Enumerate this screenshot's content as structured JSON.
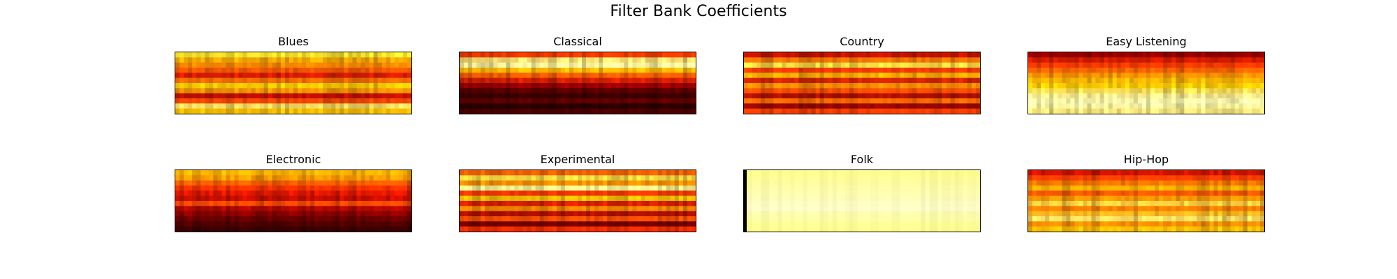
{
  "figure": {
    "title": "Filter Bank Coefficients",
    "colormap": "hot"
  },
  "chart_data": [
    {
      "type": "heatmap",
      "title": "Blues",
      "rows": [
        "#ffeb30",
        "#ffb000",
        "#ff8c00",
        "#ff5a00",
        "#e01e00",
        "#ff7000",
        "#ffd000",
        "#ff9a00",
        "#c81000",
        "#ff4a00",
        "#ffe060",
        "#ffc400"
      ],
      "profile": "warm-bright-band",
      "dominant_colors": [
        "#ff2800",
        "#ffd200",
        "#fffca0",
        "#8b0000"
      ]
    },
    {
      "type": "heatmap",
      "title": "Classical",
      "rows": [
        "#ff3c00",
        "#ffe070",
        "#fff8a0",
        "#ffb800",
        "#ff6000",
        "#d42000",
        "#9a0000",
        "#5a0000",
        "#3c0000",
        "#600000",
        "#2a0000",
        "#4a0000"
      ],
      "profile": "bright-top-dark-bottom",
      "dominant_colors": [
        "#3c0000",
        "#ffd000",
        "#fffaa8",
        "#c81400"
      ]
    },
    {
      "type": "heatmap",
      "title": "Country",
      "rows": [
        "#c81400",
        "#ff7800",
        "#ffe040",
        "#ff3c00",
        "#ffb000",
        "#d82400",
        "#ff9000",
        "#ff5000",
        "#b41000",
        "#ff6a00",
        "#9c0800",
        "#ff4000"
      ],
      "profile": "striped",
      "dominant_colors": [
        "#c81400",
        "#ffa000",
        "#ffe868",
        "#6e0000"
      ]
    },
    {
      "type": "heatmap",
      "title": "Easy Listening",
      "rows": [
        "#9a0000",
        "#d41c00",
        "#ff3c00",
        "#ff6400",
        "#ff9600",
        "#ffb800",
        "#ffd000",
        "#ffe050",
        "#fff090",
        "#ffffb0",
        "#fff7a0",
        "#ffee80"
      ],
      "profile": "dark-top-bright-bottom",
      "dominant_colors": [
        "#9a0000",
        "#ff5000",
        "#ffe060",
        "#ffffc0"
      ]
    },
    {
      "type": "heatmap",
      "title": "Electronic",
      "rows": [
        "#ffb400",
        "#ff9c00",
        "#ff6000",
        "#ff3200",
        "#e01800",
        "#c80e00",
        "#ff4a00",
        "#b00800",
        "#8c0000",
        "#6a0000",
        "#500000",
        "#3a0000"
      ],
      "profile": "mid-top-dark-bottom",
      "dominant_colors": [
        "#ff7000",
        "#e01c00",
        "#700000",
        "#ffd040"
      ]
    },
    {
      "type": "heatmap",
      "title": "Experimental",
      "rows": [
        "#ff6400",
        "#ffe040",
        "#ff9400",
        "#fff890",
        "#ff3a00",
        "#ffc400",
        "#e02000",
        "#ff8800",
        "#b81000",
        "#ff5000",
        "#7a0000",
        "#ff3000"
      ],
      "profile": "striped",
      "dominant_colors": [
        "#ff5000",
        "#ffe040",
        "#fffaa0",
        "#8c0000"
      ]
    },
    {
      "type": "heatmap",
      "title": "Folk",
      "rows": [
        "#ffff90",
        "#ffff98",
        "#fffca0",
        "#ffffa8",
        "#ffffb0",
        "#fffcb8",
        "#ffffc0",
        "#ffffc8",
        "#fffcb0",
        "#ffffa8",
        "#ffff98",
        "#ffff90"
      ],
      "profile": "uniform-bright",
      "dominant_colors": [
        "#ffff96",
        "#ffffc8",
        "#000000"
      ]
    },
    {
      "type": "heatmap",
      "title": "Hip-Hop",
      "rows": [
        "#d01400",
        "#ff4000",
        "#ff7800",
        "#ffb000",
        "#ff5a00",
        "#ff9800",
        "#ffd040",
        "#ff8000",
        "#ffb820",
        "#ffe060",
        "#ff9000",
        "#ffc000"
      ],
      "profile": "mixed",
      "dominant_colors": [
        "#e01c00",
        "#ff8800",
        "#ffe050",
        "#a00800"
      ]
    }
  ]
}
